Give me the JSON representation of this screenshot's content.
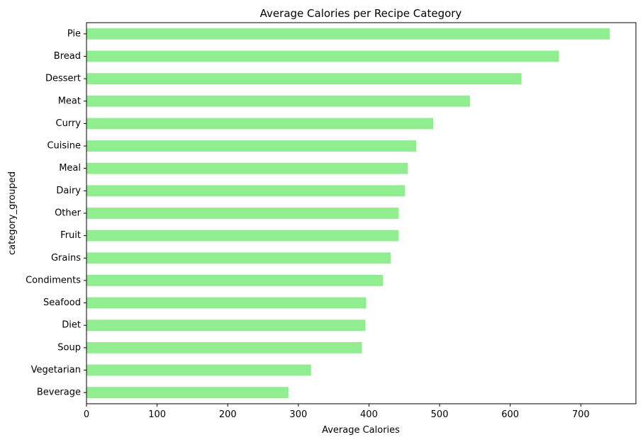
{
  "chart_data": {
    "type": "bar",
    "orientation": "horizontal",
    "title": "Average Calories per Recipe Category",
    "xlabel": "Average Calories",
    "ylabel": "category_grouped",
    "categories": [
      "Pie",
      "Bread",
      "Dessert",
      "Meat",
      "Curry",
      "Cuisine",
      "Meal",
      "Dairy",
      "Other",
      "Fruit",
      "Grains",
      "Condiments",
      "Seafood",
      "Diet",
      "Soup",
      "Vegetarian",
      "Beverage"
    ],
    "values": [
      741,
      669,
      616,
      543,
      491,
      467,
      455,
      451,
      442,
      442,
      431,
      420,
      396,
      395,
      390,
      318,
      286
    ],
    "xlim": [
      0,
      778
    ],
    "xticks": [
      0,
      100,
      200,
      300,
      400,
      500,
      600,
      700
    ],
    "bar_color": "#90EE90",
    "grid": false,
    "legend": false
  }
}
